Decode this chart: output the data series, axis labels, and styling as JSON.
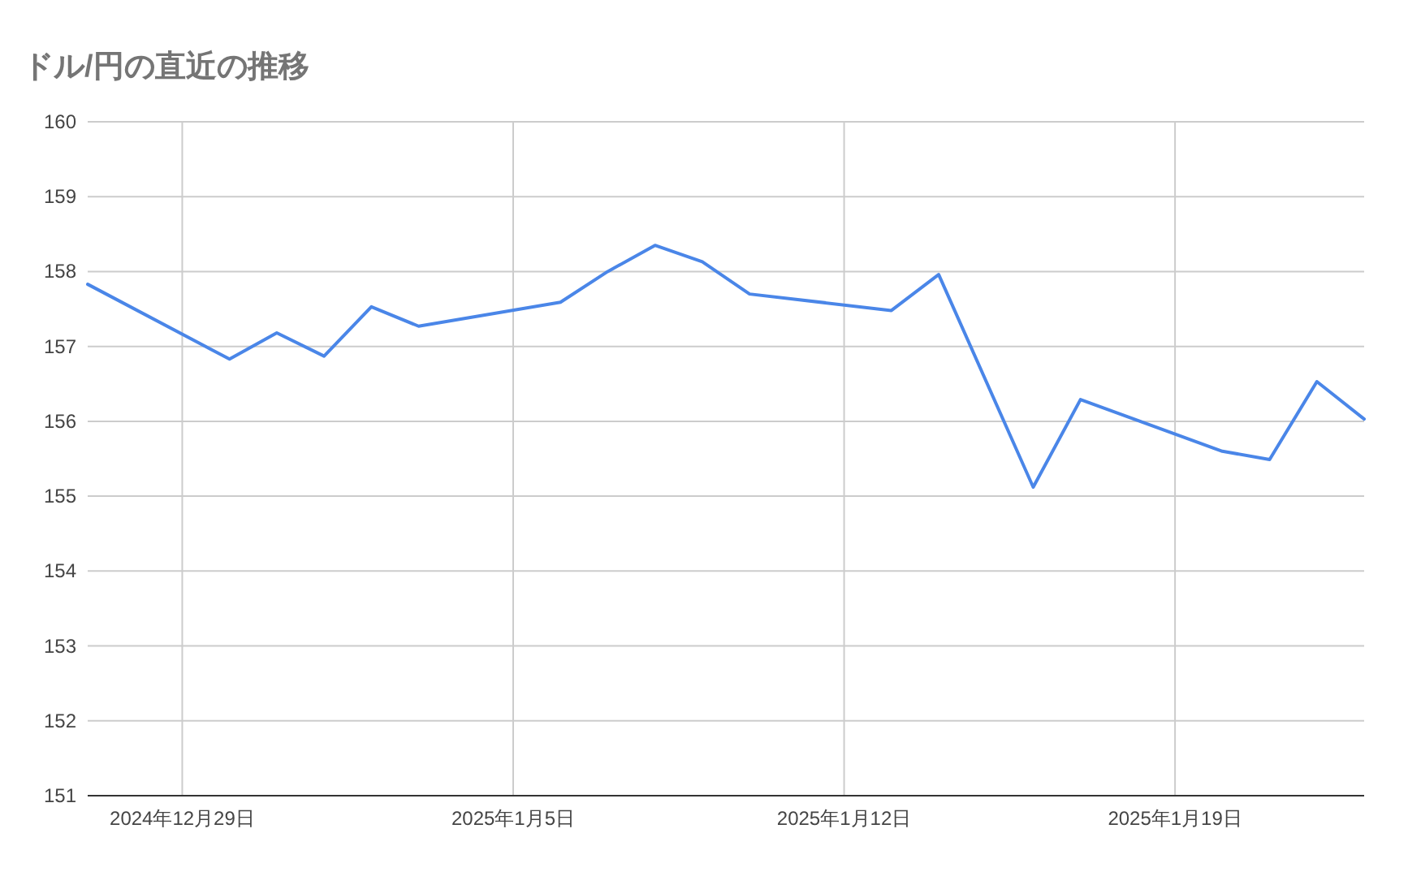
{
  "chart_data": {
    "type": "line",
    "title": "ドル/円の直近の推移",
    "x": [
      "2024-12-27",
      "2024-12-30",
      "2024-12-31",
      "2025-01-01",
      "2025-01-02",
      "2025-01-03",
      "2025-01-06",
      "2025-01-07",
      "2025-01-08",
      "2025-01-09",
      "2025-01-10",
      "2025-01-13",
      "2025-01-14",
      "2025-01-16",
      "2025-01-17",
      "2025-01-20",
      "2025-01-21",
      "2025-01-22",
      "2025-01-23"
    ],
    "series": [
      {
        "color": "#4a86e8",
        "values": [
          157.83,
          156.83,
          157.18,
          156.87,
          157.53,
          157.27,
          157.59,
          158.0,
          158.35,
          158.13,
          157.7,
          157.48,
          157.96,
          155.12,
          156.29,
          155.6,
          155.49,
          156.53,
          156.03
        ]
      }
    ],
    "xlim": [
      "2024-12-27",
      "2025-01-23"
    ],
    "xticks": [
      {
        "value": "2024-12-29",
        "label": "2024年12月29日"
      },
      {
        "value": "2025-01-05",
        "label": "2025年1月5日"
      },
      {
        "value": "2025-01-12",
        "label": "2025年1月12日"
      },
      {
        "value": "2025-01-19",
        "label": "2025年1月19日"
      }
    ],
    "ylim": [
      151,
      160
    ],
    "yticks": [
      151,
      152,
      153,
      154,
      155,
      156,
      157,
      158,
      159,
      160
    ],
    "grid": true
  }
}
